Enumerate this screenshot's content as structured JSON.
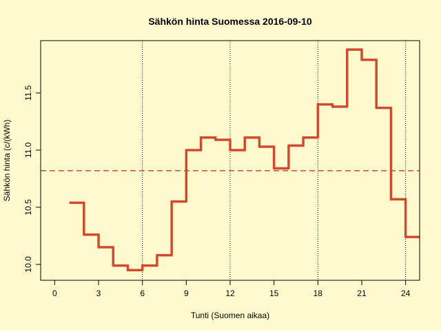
{
  "chart_data": {
    "type": "step",
    "title": "Sähkön hinta Suomessa 2016-09-10",
    "x_label": "Tunti (Suomen aikaa)",
    "y_label": "Sähkön hinta (c/(kWh)",
    "x": [
      1,
      2,
      3,
      4,
      5,
      6,
      7,
      8,
      9,
      10,
      11,
      12,
      13,
      14,
      15,
      16,
      17,
      18,
      19,
      20,
      21,
      22,
      23,
      24
    ],
    "series": [
      {
        "color": "#d04a30",
        "values": [
          10.54,
          10.26,
          10.15,
          9.99,
          9.95,
          9.99,
          10.08,
          10.55,
          11.0,
          11.11,
          11.09,
          11.0,
          11.11,
          11.03,
          10.84,
          11.04,
          11.11,
          11.4,
          11.38,
          11.88,
          11.79,
          11.37,
          10.57,
          10.24
        ]
      }
    ],
    "reference_line": {
      "value": 10.82,
      "color": "#d04a30"
    },
    "vlines": [
      6,
      12,
      18,
      24
    ],
    "xlim": [
      -0.96,
      24.96
    ],
    "ylim": [
      9.861,
      11.958
    ],
    "xticks": [
      0,
      3,
      6,
      9,
      12,
      15,
      18,
      21,
      24
    ],
    "yticks": [
      {
        "value": 10,
        "label": "10.0"
      },
      10.5,
      {
        "value": 11,
        "label": "11.0"
      },
      11.5
    ],
    "background": "#fffacd"
  }
}
